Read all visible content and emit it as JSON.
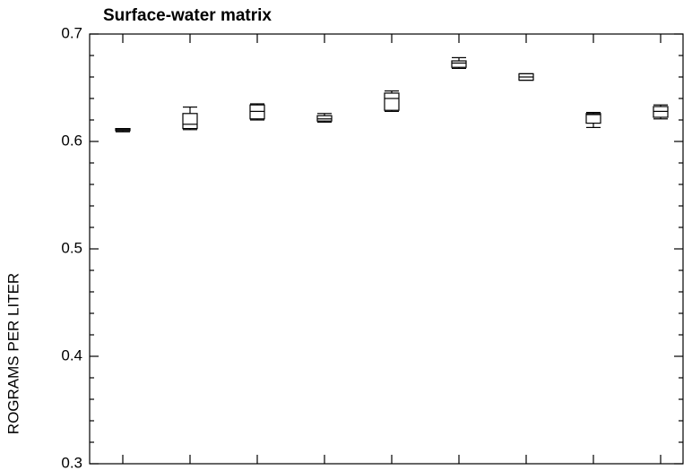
{
  "chart_data": {
    "type": "box",
    "title": "Surface-water matrix",
    "y_label": "ROGRAMS PER LITER",
    "categories": [
      null,
      null,
      null,
      null,
      null,
      null,
      null,
      null,
      null
    ],
    "boxes": [
      {
        "min": 0.609,
        "q1": 0.61,
        "median": 0.611,
        "q3": 0.612,
        "max": 0.612
      },
      {
        "min": 0.611,
        "q1": 0.612,
        "median": 0.616,
        "q3": 0.626,
        "max": 0.632
      },
      {
        "min": 0.62,
        "q1": 0.621,
        "median": 0.628,
        "q3": 0.634,
        "max": 0.635
      },
      {
        "min": 0.618,
        "q1": 0.619,
        "median": 0.621,
        "q3": 0.624,
        "max": 0.626
      },
      {
        "min": 0.628,
        "q1": 0.629,
        "median": 0.64,
        "q3": 0.645,
        "max": 0.647
      },
      {
        "min": 0.668,
        "q1": 0.669,
        "median": 0.673,
        "q3": 0.675,
        "max": 0.678
      },
      {
        "min": 0.657,
        "q1": 0.657,
        "median": 0.66,
        "q3": 0.663,
        "max": 0.663
      },
      {
        "min": 0.613,
        "q1": 0.617,
        "median": 0.625,
        "q3": 0.626,
        "max": 0.627
      },
      {
        "min": 0.621,
        "q1": 0.6225,
        "median": 0.628,
        "q3": 0.6325,
        "max": 0.634
      }
    ],
    "color": "#000000",
    "ylim": [
      0.3,
      0.7
    ],
    "yticks": [
      0.3,
      0.4,
      0.5,
      0.6,
      0.7
    ],
    "grid": false
  }
}
